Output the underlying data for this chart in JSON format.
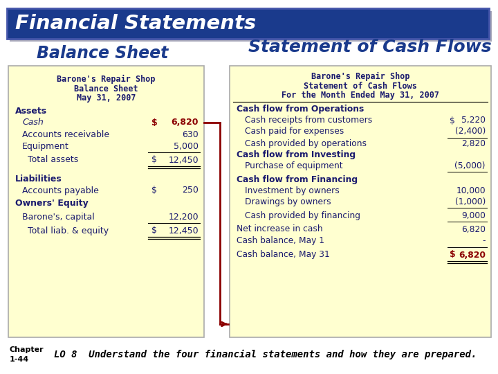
{
  "title": "Financial Statements",
  "title_bg": "#1a3a8c",
  "title_color": "#ffffff",
  "bs_heading": "Balance Sheet",
  "scf_heading": "Statement of Cash Flows",
  "heading_color": "#1a3a8c",
  "box_bg": "#ffffd0",
  "footer_text": "LO 8  Understand the four financial statements and how they are prepared.",
  "chapter_label": "Chapter\n1-44",
  "bs_company": "Barone's Repair Shop",
  "bs_title": "Balance Sheet",
  "bs_date": "May 31, 2007",
  "scf_company": "Barone's Repair Shop",
  "scf_title": "Statement of Cash Flows",
  "scf_date": "For the Month Ended May 31, 2007",
  "dark_text": "#1a1a6e",
  "red_text": "#8b0000",
  "black_text": "#000000",
  "arrow_color": "#8b0000"
}
